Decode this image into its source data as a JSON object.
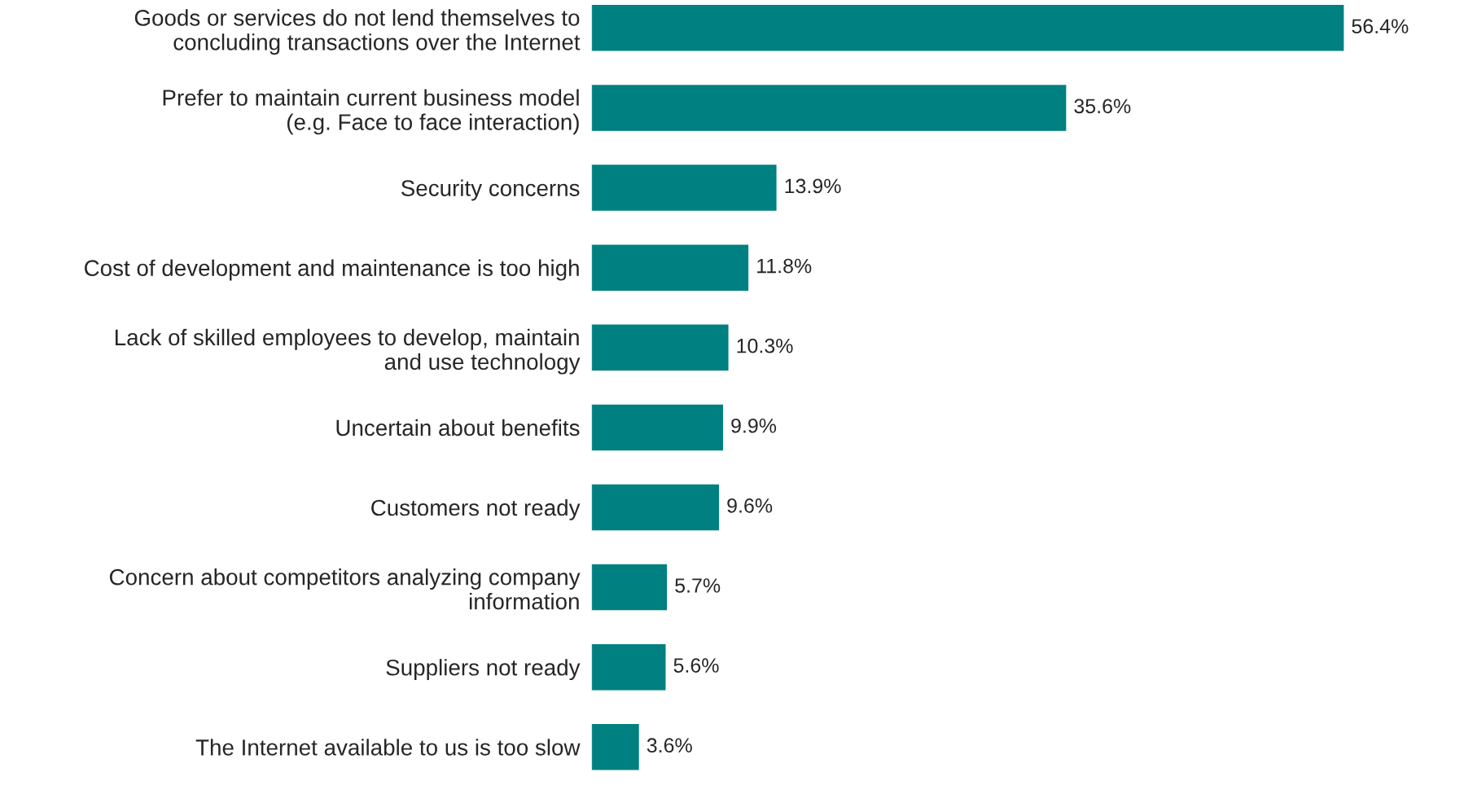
{
  "chart_data": {
    "type": "bar",
    "orientation": "horizontal",
    "categories": [
      "Goods or services do not lend themselves to\nconcluding transactions over the Internet",
      "Prefer to maintain current business model\n(e.g. Face to face interaction)",
      "Security concerns",
      "Cost of development and maintenance is too high",
      "Lack of skilled employees to develop, maintain\nand use technology",
      "Uncertain about benefits",
      "Customers not ready",
      "Concern about competitors analyzing company\ninformation",
      "Suppliers not ready",
      "The Internet available to us is too slow"
    ],
    "values": [
      56.4,
      35.6,
      13.9,
      11.8,
      10.3,
      9.9,
      9.6,
      5.7,
      5.6,
      3.6
    ],
    "value_labels": [
      "56.4%",
      "35.6%",
      "13.9%",
      "11.8%",
      "10.3%",
      "9.9%",
      "9.6%",
      "5.7%",
      "5.6%",
      "3.6%"
    ],
    "color": "#008080",
    "grid": false,
    "legend": false
  }
}
